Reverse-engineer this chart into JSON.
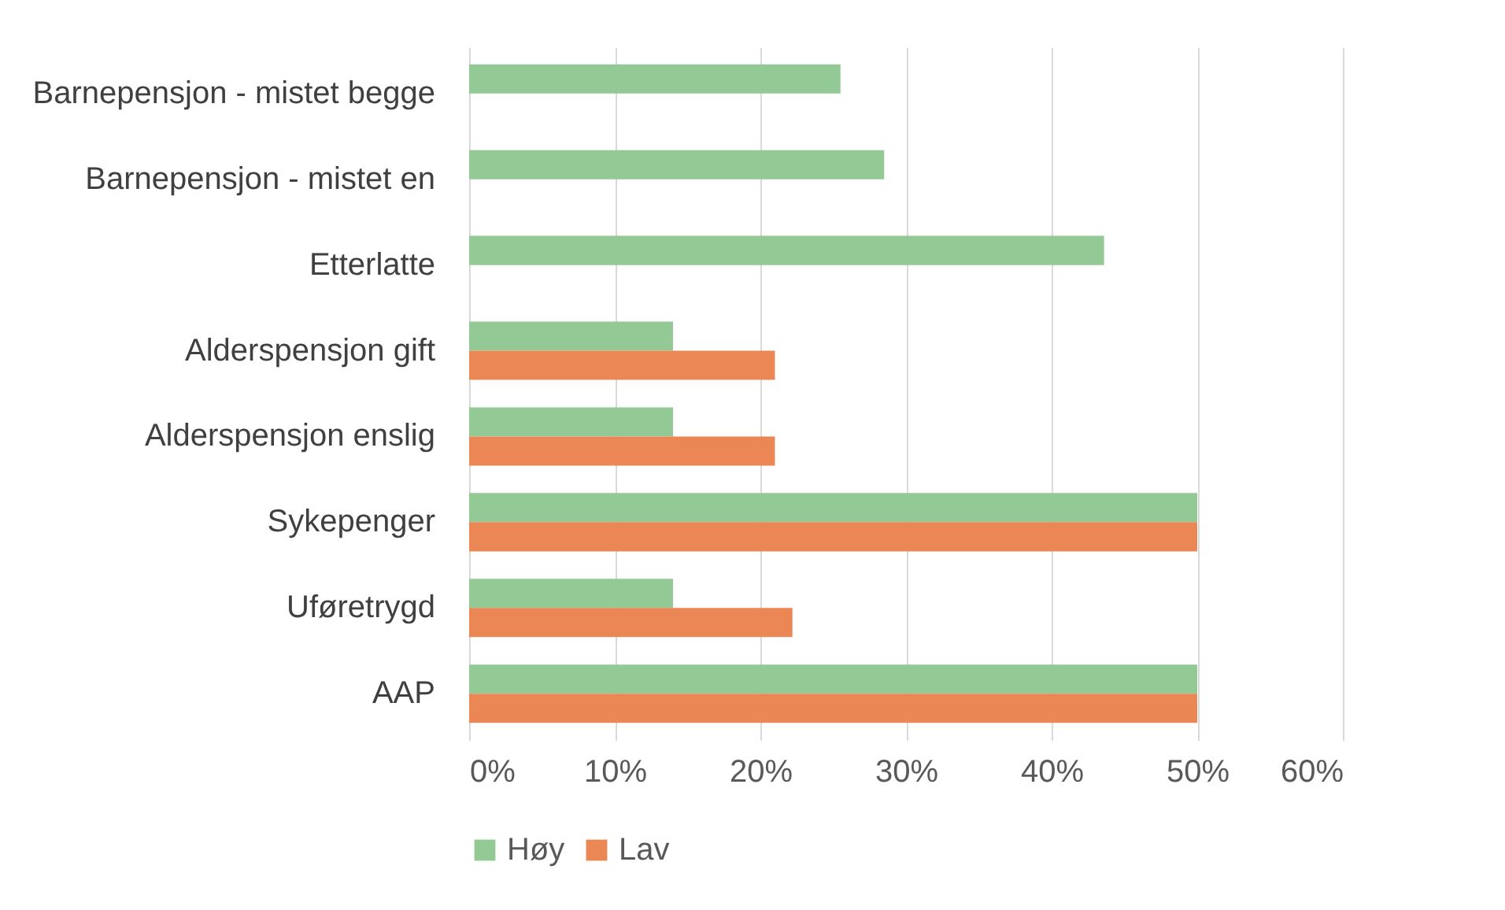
{
  "chart_data": {
    "type": "bar",
    "orientation": "horizontal",
    "categories": [
      "Barnepensjon - mistet begge",
      "Barnepensjon - mistet en",
      "Etterlatte",
      "Alderspensjon gift",
      "Alderspensjon enslig",
      "Sykepenger",
      "Uføretrygd",
      "AAP"
    ],
    "series": [
      {
        "name": "Høy",
        "color": "#93c994",
        "values": [
          25.5,
          28.5,
          43.6,
          14,
          14,
          50,
          14,
          50
        ]
      },
      {
        "name": "Lav",
        "color": "#eb8755",
        "values": [
          null,
          null,
          null,
          21,
          21,
          50,
          22.2,
          50
        ]
      }
    ],
    "xlim": [
      0,
      60
    ],
    "xticks": [
      {
        "value": 0,
        "label": "0%"
      },
      {
        "value": 10,
        "label": "10%"
      },
      {
        "value": 20,
        "label": "20%"
      },
      {
        "value": 30,
        "label": "30%"
      },
      {
        "value": 40,
        "label": "40%"
      },
      {
        "value": 50,
        "label": "50%"
      },
      {
        "value": 60,
        "label": "60%"
      }
    ],
    "grid": "x",
    "legend": "bottom"
  }
}
